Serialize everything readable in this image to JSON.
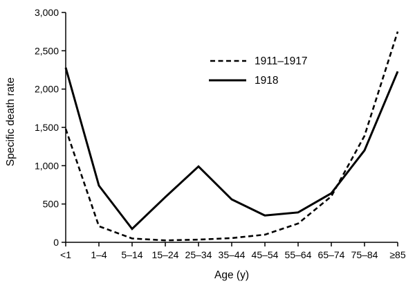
{
  "chart_data": {
    "type": "line",
    "title": "",
    "xlabel": "Age (y)",
    "ylabel": "Specific death rate",
    "ylim": [
      0,
      3000
    ],
    "grid": false,
    "legend_position": "top-center-inside",
    "categories": [
      "<1",
      "1–4",
      "5–14",
      "15–24",
      "25–34",
      "35–44",
      "45–54",
      "55–64",
      "65–74",
      "75–84",
      "≥85"
    ],
    "yticks": [
      {
        "value": 0,
        "label": "0"
      },
      {
        "value": 500,
        "label": "500"
      },
      {
        "value": 1000,
        "label": "1,000"
      },
      {
        "value": 1500,
        "label": "1,500"
      },
      {
        "value": 2000,
        "label": "2,000"
      },
      {
        "value": 2500,
        "label": "2,500"
      },
      {
        "value": 3000,
        "label": "3,000"
      }
    ],
    "series": [
      {
        "name": "1911–1917",
        "style": "dashed",
        "values": [
          1480,
          210,
          50,
          25,
          35,
          55,
          100,
          245,
          600,
          1390,
          2750
        ]
      },
      {
        "name": "1918",
        "style": "solid",
        "values": [
          2280,
          740,
          175,
          590,
          990,
          560,
          350,
          390,
          640,
          1200,
          2230
        ]
      }
    ]
  }
}
